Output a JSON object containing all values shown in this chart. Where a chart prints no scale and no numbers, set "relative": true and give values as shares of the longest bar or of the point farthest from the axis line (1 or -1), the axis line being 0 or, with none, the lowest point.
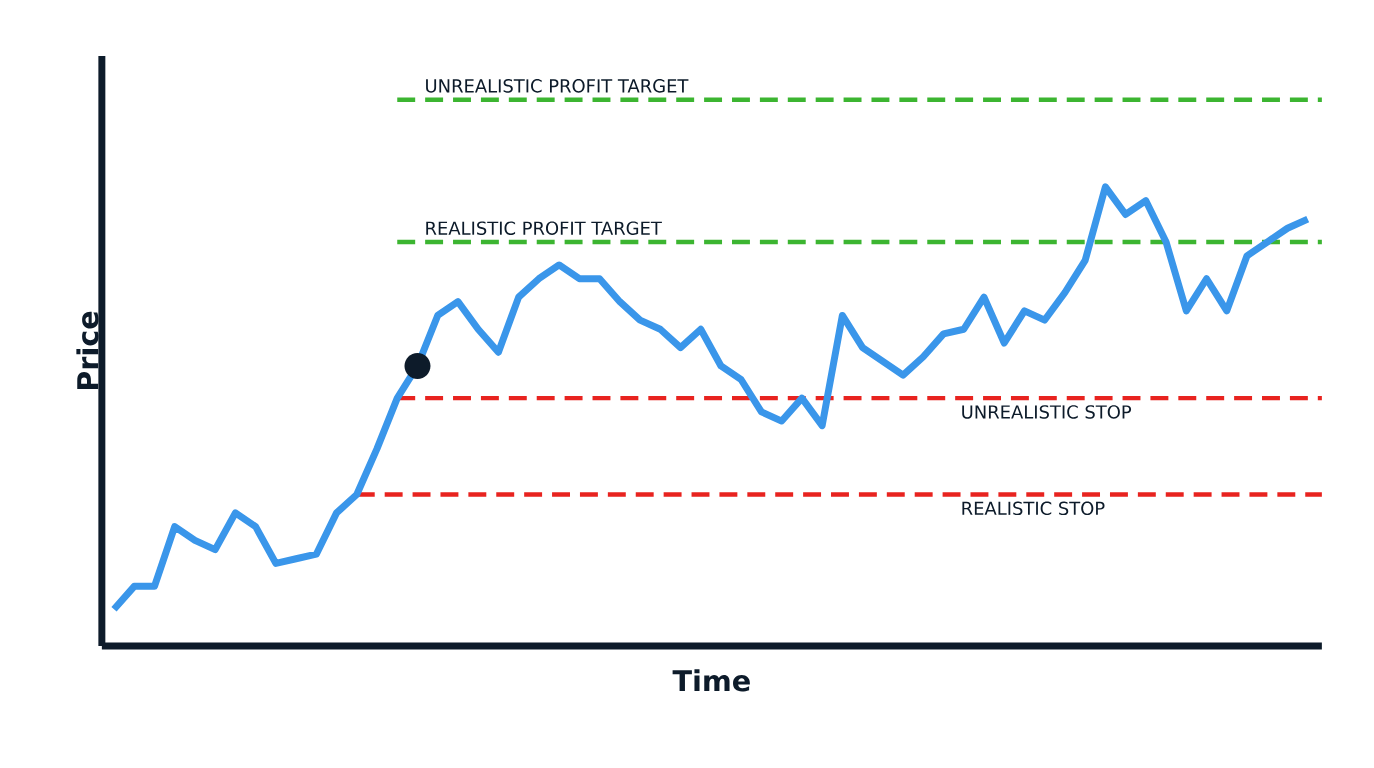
{
  "chart_data": {
    "type": "line",
    "relative": true,
    "xlabel": "Time",
    "ylabel": "Price",
    "categories": [
      null,
      null,
      null,
      null,
      null,
      null,
      null,
      null,
      null,
      null,
      null,
      null,
      null,
      null,
      null,
      null,
      null,
      null,
      null,
      null,
      null,
      null,
      null,
      null,
      null,
      null,
      null,
      null,
      null,
      null,
      null,
      null,
      null,
      null,
      null,
      null,
      null,
      null,
      null,
      null,
      null,
      null,
      null,
      null,
      null,
      null,
      null,
      null,
      null,
      null,
      null,
      null,
      null,
      null,
      null,
      null,
      null,
      null,
      null,
      null
    ],
    "series": [
      {
        "color": "#3a96ea",
        "values": [
          0.08,
          0.13,
          0.13,
          0.26,
          0.23,
          0.21,
          0.29,
          0.26,
          0.18,
          0.19,
          0.2,
          0.29,
          0.33,
          0.43,
          0.54,
          0.61,
          0.72,
          0.75,
          0.69,
          0.64,
          0.76,
          0.8,
          0.83,
          0.8,
          0.8,
          0.75,
          0.71,
          0.69,
          0.65,
          0.69,
          0.61,
          0.58,
          0.51,
          0.49,
          0.54,
          0.48,
          0.72,
          0.65,
          0.62,
          0.59,
          0.63,
          0.68,
          0.69,
          0.76,
          0.66,
          0.73,
          0.71,
          0.77,
          0.84,
          1.0,
          0.94,
          0.97,
          0.88,
          0.73,
          0.8,
          0.73,
          0.85,
          0.88,
          0.91,
          0.93
        ]
      }
    ],
    "ref_lines": [
      {
        "axis": "y",
        "value": 1.19,
        "label": "UNREALISTIC  PROFIT TARGET",
        "color": "#3cb531",
        "line_style": "dashed"
      },
      {
        "axis": "y",
        "value": 0.88,
        "label": "REALISTIC  PROFIT TARGET",
        "color": "#3cb531",
        "line_style": "dashed"
      },
      {
        "axis": "y",
        "value": 0.54,
        "label": "UNREALISTIC  STOP",
        "color": "#e8231f",
        "line_style": "dashed"
      },
      {
        "axis": "y",
        "value": 0.33,
        "label": "REALISTIC  STOP",
        "color": "#e8231f",
        "line_style": "dashed"
      }
    ],
    "line_style": "solid"
  }
}
